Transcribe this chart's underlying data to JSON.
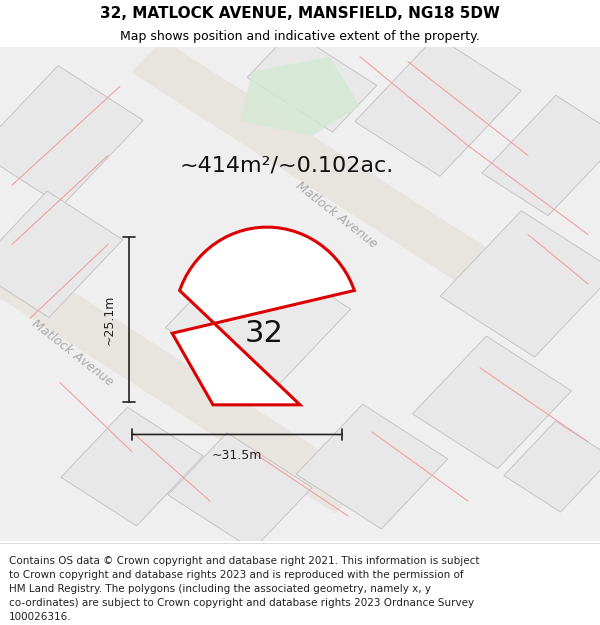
{
  "title_line1": "32, MATLOCK AVENUE, MANSFIELD, NG18 5DW",
  "title_line2": "Map shows position and indicative extent of the property.",
  "area_label": "~414m²/~0.102ac.",
  "plot_number": "32",
  "dim_vertical": "~25.1m",
  "dim_horizontal": "~31.5m",
  "road_label1": "Matlock Avenue",
  "road_label2": "Matlock Avenue",
  "footer_lines": [
    "Contains OS data © Crown copyright and database right 2021. This information is subject",
    "to Crown copyright and database rights 2023 and is reproduced with the permission of",
    "HM Land Registry. The polygons (including the associated geometry, namely x, y",
    "co-ordinates) are subject to Crown copyright and database rights 2023 Ordnance Survey",
    "100026316."
  ],
  "map_bg": "#f0efef",
  "plot_fill": "#ffffff",
  "plot_edge": "#dd0000",
  "block_color": "#e8e8e8",
  "block_edge": "#c0c0c0",
  "red_line_color": "#f4a0a0",
  "green_area": "#d4e8d4",
  "dim_color": "#222222",
  "title_fontsize": 11,
  "subtitle_fontsize": 9,
  "area_fontsize": 16,
  "plot_num_fontsize": 22,
  "dim_fontsize": 9,
  "footer_fontsize": 7.5,
  "road_label_fontsize": 9
}
